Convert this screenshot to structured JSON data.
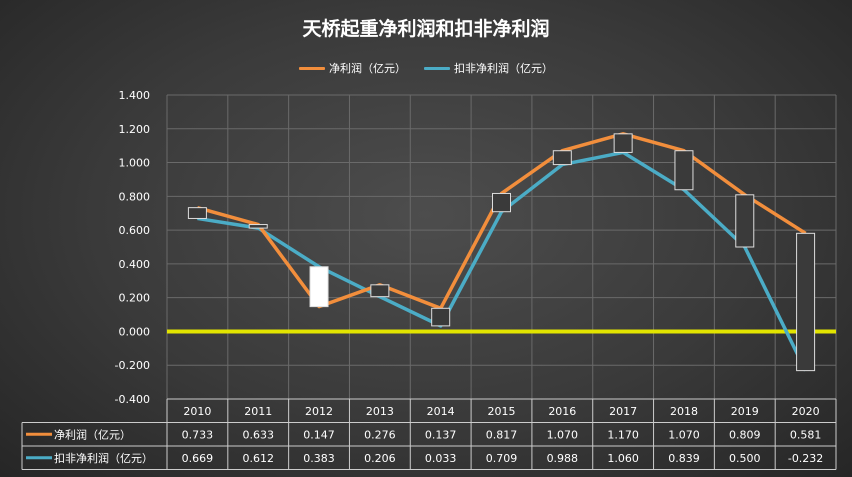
{
  "chart_data": {
    "type": "line",
    "title": "天桥起重净利润和扣非净利润",
    "categories": [
      "2010",
      "2011",
      "2012",
      "2013",
      "2014",
      "2015",
      "2016",
      "2017",
      "2018",
      "2019",
      "2020"
    ],
    "series": [
      {
        "name": "净利润（亿元）",
        "color": "#f28e3c",
        "values": [
          0.733,
          0.633,
          0.147,
          0.276,
          0.137,
          0.817,
          1.07,
          1.17,
          1.07,
          0.809,
          0.581
        ],
        "labels": [
          "0.733",
          "0.633",
          "0.147",
          "0.276",
          "0.137",
          "0.817",
          "1.070",
          "1.170",
          "1.070",
          "0.809",
          "0.581"
        ]
      },
      {
        "name": "扣非净利润（亿元）",
        "color": "#4bacc6",
        "values": [
          0.669,
          0.612,
          0.383,
          0.206,
          0.033,
          0.709,
          0.988,
          1.06,
          0.839,
          0.5,
          -0.232
        ],
        "labels": [
          "0.669",
          "0.612",
          "0.383",
          "0.206",
          "0.033",
          "0.709",
          "0.988",
          "1.060",
          "0.839",
          "0.500",
          "-0.232"
        ]
      }
    ],
    "ylim": [
      -0.4,
      1.4
    ],
    "yticks": [
      "1.400",
      "1.200",
      "1.000",
      "0.800",
      "0.600",
      "0.400",
      "0.200",
      "0.000",
      "-0.200",
      "-0.400"
    ],
    "ytick_values": [
      1.4,
      1.2,
      1.0,
      0.8,
      0.6,
      0.4,
      0.2,
      0.0,
      -0.2,
      -0.4
    ],
    "grid": true,
    "legend_position": "top",
    "zero_line_color": "#e2e400",
    "up_bar_color": "#ffffff",
    "down_bar_color": "#3a3a3a"
  }
}
